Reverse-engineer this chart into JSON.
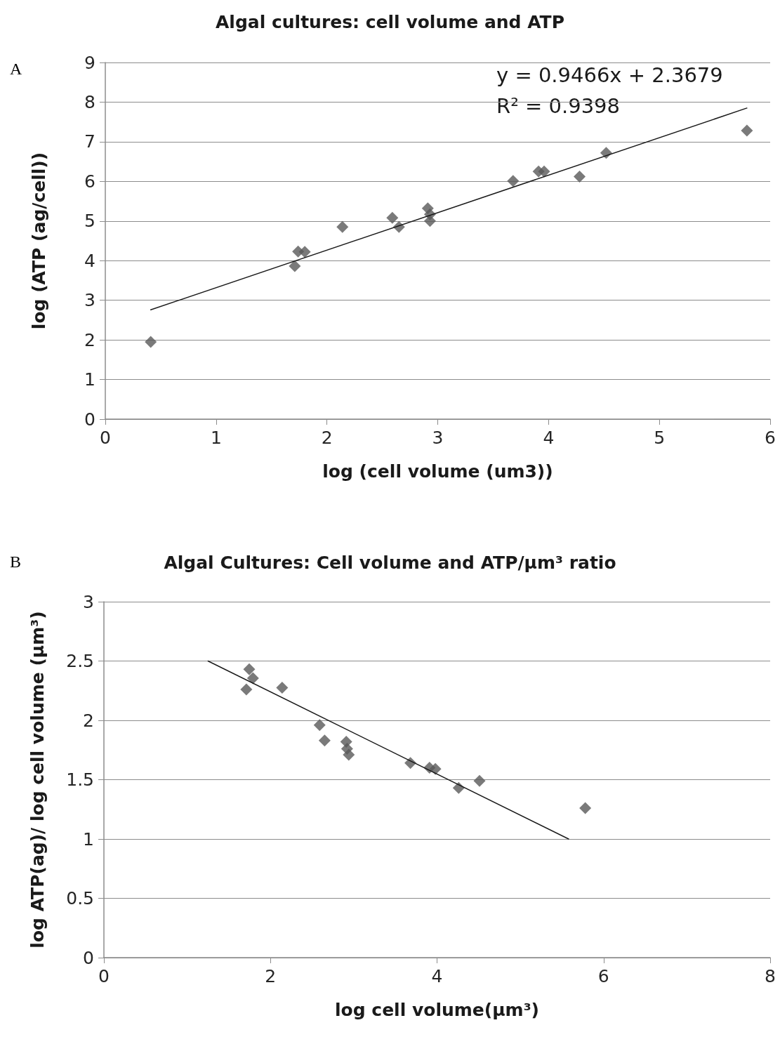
{
  "chart_data": [
    {
      "type": "scatter",
      "title": "Algal cultures: cell volume and ATP",
      "xlabel": "log (cell volume (um3))",
      "ylabel": "log (ATP (ag/cell))",
      "annotations": [
        "A",
        "y = 0.9466x + 2.3679",
        "R² = 0.9398"
      ],
      "series": [
        {
          "color": "#595959",
          "marker": "diamond",
          "x": [
            0.41,
            1.71,
            1.74,
            1.8,
            2.14,
            2.59,
            2.65,
            2.91,
            2.93,
            2.93,
            3.68,
            3.91,
            3.96,
            4.28,
            4.52,
            5.79
          ],
          "values": [
            1.95,
            3.86,
            4.23,
            4.22,
            4.85,
            5.08,
            4.85,
            5.32,
            5.17,
            5.0,
            6.01,
            6.25,
            6.25,
            6.12,
            6.72,
            7.28
          ]
        },
        {
          "type": "line",
          "color": "#1a1a1a",
          "marker": "none",
          "line_style": "solid",
          "x": [
            0.41,
            5.79
          ],
          "values": [
            2.76,
            7.85
          ]
        }
      ],
      "xlim": [
        0,
        6
      ],
      "xticks": [
        0,
        1,
        2,
        3,
        4,
        5,
        6
      ],
      "ylim": [
        0,
        9
      ],
      "yticks": [
        0,
        1,
        2,
        3,
        4,
        5,
        6,
        7,
        8,
        9
      ],
      "grid": "y"
    },
    {
      "type": "scatter",
      "title": "Algal Cultures: Cell volume and ATP/μm³ ratio",
      "xlabel": "log cell volume(μm³)",
      "ylabel": "log ATP(ag)/ log cell volume (μm³)",
      "annotations": [
        "B"
      ],
      "series": [
        {
          "color": "#595959",
          "marker": "diamond",
          "x": [
            1.71,
            1.745,
            1.79,
            2.14,
            2.59,
            2.65,
            2.91,
            2.92,
            2.94,
            3.68,
            3.91,
            3.98,
            4.26,
            4.51,
            5.78
          ],
          "values": [
            2.26,
            2.43,
            2.355,
            2.275,
            1.96,
            1.83,
            1.82,
            1.76,
            1.71,
            1.64,
            1.6,
            1.59,
            1.43,
            1.49,
            1.26
          ]
        },
        {
          "type": "line",
          "color": "#1a1a1a",
          "marker": "none",
          "line_style": "solid",
          "x": [
            1.25,
            5.58
          ],
          "values": [
            2.5,
            1.0
          ]
        }
      ],
      "xlim": [
        0,
        8
      ],
      "xticks": [
        0,
        2,
        4,
        6,
        8
      ],
      "ylim": [
        0,
        3
      ],
      "yticks": [
        0,
        0.5,
        1,
        1.5,
        2,
        2.5,
        3
      ],
      "grid": "y"
    }
  ]
}
